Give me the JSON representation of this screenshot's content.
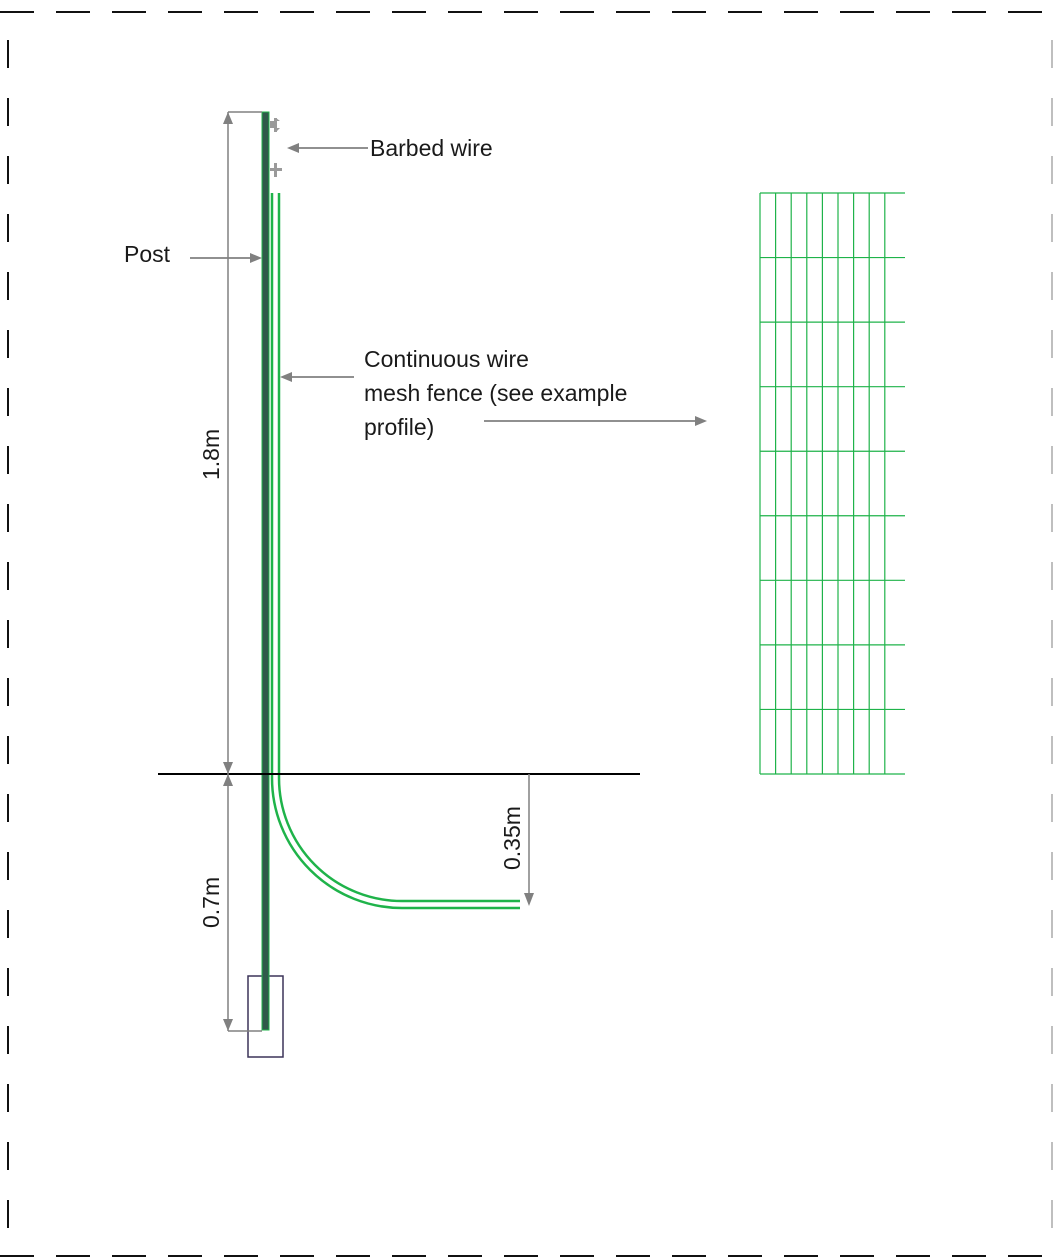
{
  "labels": {
    "barbed_wire": "Barbed wire",
    "post": "Post",
    "mesh_line1": "Continuous wire",
    "mesh_line2": "mesh fence (see example",
    "mesh_line3": "profile)"
  },
  "dimensions": {
    "above_ground": "1.8m",
    "below_ground": "0.7m",
    "burial_depth": "0.35m"
  },
  "colors": {
    "mesh_green": "#1fb34a",
    "post_dark": "#2f5a4a",
    "arrow_gray": "#808080",
    "footing_purple": "#3b3358",
    "ground_black": "#000000"
  }
}
